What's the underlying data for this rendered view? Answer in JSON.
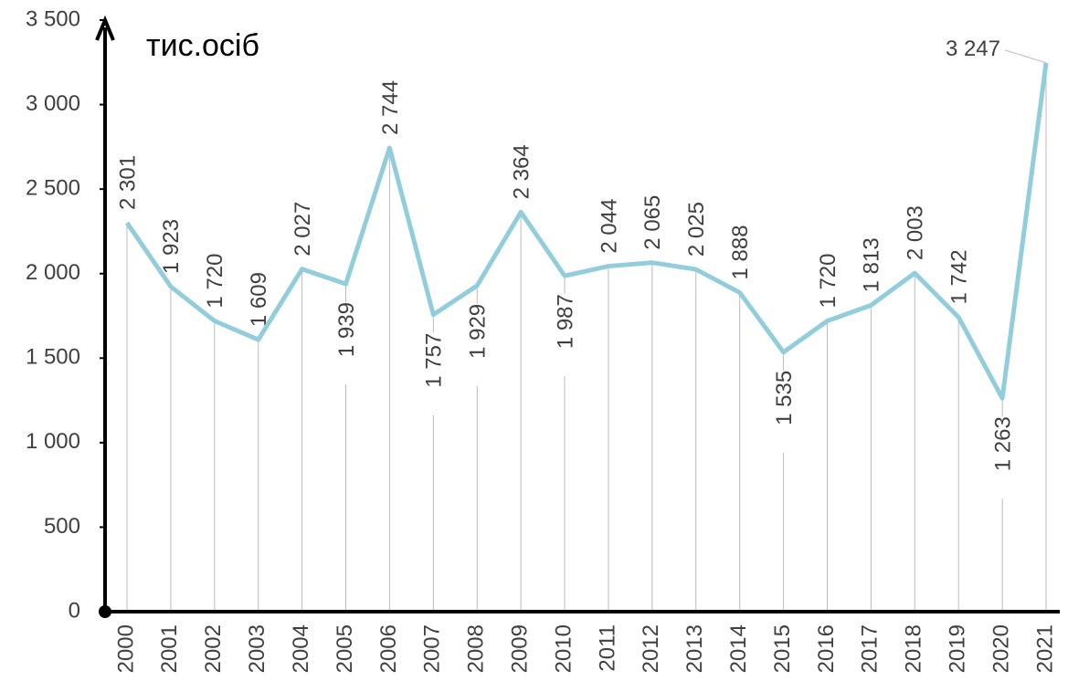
{
  "chart_data": {
    "type": "line",
    "y_axis_label": "тис.осіб",
    "categories": [
      "2000",
      "2001",
      "2002",
      "2003",
      "2004",
      "2005",
      "2006",
      "2007",
      "2008",
      "2009",
      "2010",
      "2011",
      "2012",
      "2013",
      "2014",
      "2015",
      "2016",
      "2017",
      "2018",
      "2019",
      "2020",
      "2021"
    ],
    "values": [
      2301,
      1923,
      1720,
      1609,
      2027,
      1939,
      2744,
      1757,
      1929,
      2364,
      1987,
      2044,
      2065,
      2025,
      1888,
      1535,
      1720,
      1813,
      2003,
      1742,
      1263,
      3247
    ],
    "value_labels": [
      "2 301",
      "1 923",
      "1 720",
      "1 609",
      "2 027",
      "1 939",
      "2 744",
      "1 757",
      "1 929",
      "2 364",
      "1 987",
      "2 044",
      "2 065",
      "2 025",
      "1 888",
      "1 535",
      "1 720",
      "1 813",
      "2 003",
      "1 742",
      "1 263",
      "3 247"
    ],
    "color": "#92cddc",
    "ylim": [
      0,
      3500
    ],
    "yticks": [
      0,
      500,
      {
        "value": 1000,
        "label": "1 000"
      },
      {
        "value": 1500,
        "label": "1 500"
      },
      {
        "value": 2000,
        "label": "2 000"
      },
      {
        "value": 2500,
        "label": "2 500"
      },
      {
        "value": 3000,
        "label": "3 000"
      },
      {
        "value": 3500,
        "label": "3 500"
      }
    ]
  }
}
